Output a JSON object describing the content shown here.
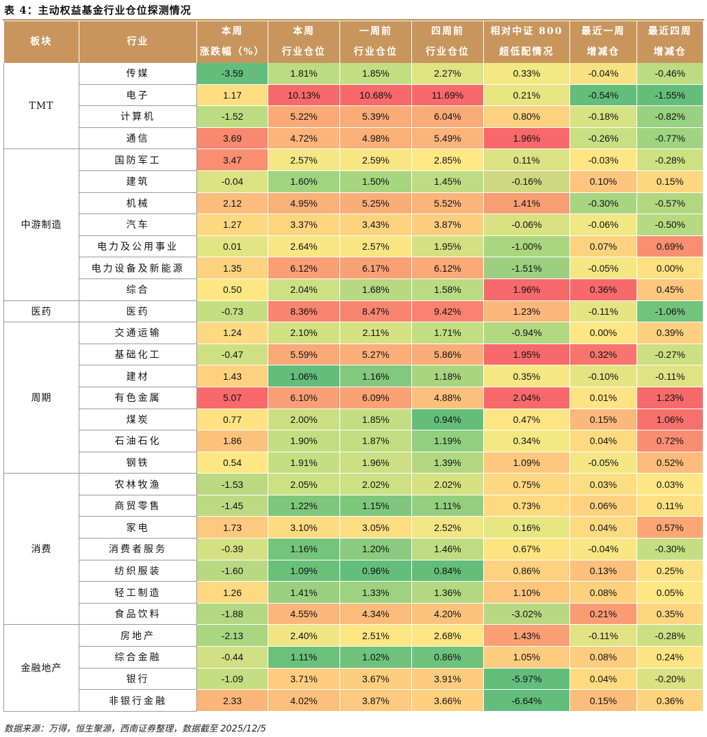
{
  "title": "表 4：主动权益基金行业仓位探测情况",
  "headers": {
    "sector": "板块",
    "industry": "行业",
    "c1": [
      "本周",
      "涨跌幅（%）"
    ],
    "c2": [
      "本周",
      "行业仓位"
    ],
    "c3": [
      "一周前",
      "行业仓位"
    ],
    "c4": [
      "四周前",
      "行业仓位"
    ],
    "c5": [
      "相对中证 800",
      "超低配情况"
    ],
    "c6": [
      "最近一周",
      "增减仓"
    ],
    "c7": [
      "最近四周",
      "增减仓"
    ]
  },
  "sectors": [
    {
      "name": "TMT",
      "rows": [
        {
          "industry": "传媒",
          "values": [
            "-3.59",
            "1.81%",
            "1.85%",
            "2.27%",
            "0.33%",
            "-0.04%",
            "-0.46%"
          ],
          "colors": [
            "#63be7b",
            "#bcdc82",
            "#c3de82",
            "#dfe483",
            "#f3e883",
            "#f7e183",
            "#bcdc82"
          ]
        },
        {
          "industry": "电子",
          "values": [
            "1.17",
            "10.13%",
            "10.68%",
            "11.69%",
            "0.21%",
            "-0.54%",
            "-1.55%"
          ],
          "colors": [
            "#fedd81",
            "#f8696b",
            "#f8696b",
            "#f8696b",
            "#e7e683",
            "#63be7b",
            "#63be7b"
          ]
        },
        {
          "industry": "计算机",
          "values": [
            "-1.52",
            "5.22%",
            "5.39%",
            "6.04%",
            "0.80%",
            "-0.18%",
            "-0.82%"
          ],
          "colors": [
            "#bcdc82",
            "#fbaa77",
            "#fbab77",
            "#fbab77",
            "#fdd17f",
            "#d7e282",
            "#98d180"
          ]
        },
        {
          "industry": "通信",
          "values": [
            "3.69",
            "4.72%",
            "4.98%",
            "5.49%",
            "1.96%",
            "-0.26%",
            "-0.77%"
          ],
          "colors": [
            "#f98870",
            "#fcb479",
            "#fbb078",
            "#fbb479",
            "#f8696b",
            "#c8df82",
            "#a0d380"
          ]
        }
      ]
    },
    {
      "name": "中游制造",
      "rows": [
        {
          "industry": "国防军工",
          "values": [
            "3.47",
            "2.57%",
            "2.59%",
            "2.85%",
            "0.11%",
            "-0.03%",
            "-0.28%"
          ],
          "colors": [
            "#f98e71",
            "#f4e784",
            "#f8e683",
            "#fee883",
            "#dce383",
            "#fee683",
            "#cde082"
          ]
        },
        {
          "industry": "建筑",
          "values": [
            "-0.04",
            "1.60%",
            "1.50%",
            "1.45%",
            "-0.16%",
            "0.10%",
            "0.15%"
          ],
          "colors": [
            "#dbe382",
            "#a2d480",
            "#a8d580",
            "#bedc81",
            "#ced981",
            "#fdc57d",
            "#fed67f"
          ]
        },
        {
          "industry": "机械",
          "values": [
            "2.12",
            "4.95%",
            "5.25%",
            "5.52%",
            "1.41%",
            "-0.30%",
            "-0.57%"
          ],
          "colors": [
            "#fcbc7b",
            "#fbb078",
            "#fbad78",
            "#fbb479",
            "#f99d74",
            "#a8d580",
            "#b1d881"
          ]
        },
        {
          "industry": "汽车",
          "values": [
            "1.27",
            "3.37%",
            "3.43%",
            "3.87%",
            "-0.06%",
            "-0.06%",
            "-0.50%"
          ],
          "colors": [
            "#fed881",
            "#fed47f",
            "#fdd27f",
            "#fdcd7e",
            "#d8e282",
            "#f1e783",
            "#b6da81"
          ]
        },
        {
          "industry": "电力及公用事业",
          "values": [
            "0.01",
            "2.64%",
            "2.57%",
            "1.95%",
            "-1.00%",
            "0.07%",
            "0.69%"
          ],
          "colors": [
            "#e2e583",
            "#f8e683",
            "#f9e683",
            "#d3e182",
            "#abd680",
            "#fdd27f",
            "#f98e71"
          ]
        },
        {
          "industry": "电力设备及新能源",
          "values": [
            "1.35",
            "6.12%",
            "6.17%",
            "6.12%",
            "-1.51%",
            "-0.05%",
            "0.00%"
          ],
          "colors": [
            "#fdd27f",
            "#fa9e74",
            "#faa075",
            "#fba975",
            "#9ecf7f",
            "#f4e683",
            "#fee081"
          ]
        },
        {
          "industry": "综合",
          "values": [
            "0.50",
            "2.04%",
            "1.68%",
            "1.58%",
            "1.96%",
            "0.36%",
            "0.45%"
          ],
          "colors": [
            "#fee783",
            "#cde082",
            "#b6d981",
            "#b9db81",
            "#f8696b",
            "#f8696b",
            "#fdc87d"
          ]
        }
      ]
    },
    {
      "name": "医药",
      "rows": [
        {
          "industry": "医药",
          "values": [
            "-0.73",
            "8.36%",
            "8.47%",
            "9.42%",
            "1.23%",
            "-0.11%",
            "-1.06%"
          ],
          "colors": [
            "#c6de82",
            "#f98470",
            "#f98570",
            "#f98370",
            "#fcb77a",
            "#e5e483",
            "#72c37c"
          ]
        }
      ]
    },
    {
      "name": "周期",
      "rows": [
        {
          "industry": "交通运输",
          "values": [
            "1.24",
            "2.10%",
            "2.11%",
            "1.71%",
            "-0.94%",
            "0.00%",
            "0.39%"
          ],
          "colors": [
            "#fed981",
            "#d1e182",
            "#d5e282",
            "#c2dd82",
            "#b2d881",
            "#fde683",
            "#fecf7e"
          ]
        },
        {
          "industry": "基础化工",
          "values": [
            "-0.47",
            "5.59%",
            "5.27%",
            "5.86%",
            "1.95%",
            "0.32%",
            "-0.27%"
          ],
          "colors": [
            "#cfe082",
            "#fba877",
            "#fbae78",
            "#fbac77",
            "#f8696b",
            "#f8746d",
            "#ccdf82"
          ]
        },
        {
          "industry": "建材",
          "values": [
            "1.43",
            "1.06%",
            "1.16%",
            "1.18%",
            "0.35%",
            "-0.10%",
            "-0.11%"
          ],
          "colors": [
            "#fdd17f",
            "#63be7b",
            "#82c97f",
            "#a9d57f",
            "#f5e883",
            "#e4e483",
            "#e0e383"
          ]
        },
        {
          "industry": "有色金属",
          "values": [
            "5.07",
            "6.10%",
            "6.09%",
            "4.88%",
            "2.04%",
            "0.01%",
            "1.23%"
          ],
          "colors": [
            "#f8696b",
            "#fa9f75",
            "#faa175",
            "#fcc07c",
            "#f8696b",
            "#fde383",
            "#f8696b"
          ]
        },
        {
          "industry": "煤炭",
          "values": [
            "0.77",
            "2.00%",
            "1.85%",
            "0.94%",
            "0.47%",
            "0.15%",
            "1.06%"
          ],
          "colors": [
            "#fee282",
            "#cbdf82",
            "#c3de82",
            "#63be7b",
            "#fde583",
            "#fbb87a",
            "#f8706c"
          ]
        },
        {
          "industry": "石油石化",
          "values": [
            "1.86",
            "1.90%",
            "1.87%",
            "1.19%",
            "0.34%",
            "0.04%",
            "0.72%"
          ],
          "colors": [
            "#fcc27c",
            "#c3dd82",
            "#c3dd82",
            "#92cf7f",
            "#f4e883",
            "#fdda80",
            "#f98d71"
          ]
        },
        {
          "industry": "钢铁",
          "values": [
            "0.54",
            "1.91%",
            "1.96%",
            "1.39%",
            "1.09%",
            "-0.05%",
            "0.52%"
          ],
          "colors": [
            "#fee683",
            "#c6de82",
            "#ccdf82",
            "#b1d881",
            "#fdc87d",
            "#f4e683",
            "#fcbb7b"
          ]
        }
      ]
    },
    {
      "name": "消费",
      "rows": [
        {
          "industry": "农林牧渔",
          "values": [
            "-1.53",
            "2.05%",
            "2.02%",
            "2.02%",
            "0.75%",
            "0.03%",
            "0.03%"
          ],
          "colors": [
            "#bad981",
            "#cde082",
            "#cde082",
            "#d6e182",
            "#fdd880",
            "#fddd81",
            "#fde683"
          ]
        },
        {
          "industry": "商贸零售",
          "values": [
            "-1.45",
            "1.22%",
            "1.15%",
            "1.11%",
            "0.73%",
            "0.06%",
            "0.11%"
          ],
          "colors": [
            "#bcda82",
            "#7ec77d",
            "#7ec77d",
            "#93cf7f",
            "#fdd980",
            "#fdd27f",
            "#fde081"
          ]
        },
        {
          "industry": "家电",
          "values": [
            "1.73",
            "3.10%",
            "3.05%",
            "2.52%",
            "0.16%",
            "0.04%",
            "0.57%"
          ],
          "colors": [
            "#fdc97e",
            "#fedb80",
            "#fedc81",
            "#f1e683",
            "#e7e683",
            "#fdda80",
            "#fba775"
          ]
        },
        {
          "industry": "消费者服务",
          "values": [
            "-0.39",
            "1.16%",
            "1.20%",
            "1.46%",
            "0.67%",
            "-0.04%",
            "-0.30%"
          ],
          "colors": [
            "#d3e182",
            "#74c47c",
            "#8acb7f",
            "#bedc81",
            "#fee381",
            "#f8e583",
            "#c6de82"
          ]
        },
        {
          "industry": "纺织服装",
          "values": [
            "-1.60",
            "1.09%",
            "0.96%",
            "0.84%",
            "0.86%",
            "0.13%",
            "0.25%"
          ],
          "colors": [
            "#b9d981",
            "#6ac07b",
            "#63be7b",
            "#63be7b",
            "#fdd17f",
            "#fcc07c",
            "#fde183"
          ]
        },
        {
          "industry": "轻工制造",
          "values": [
            "1.26",
            "1.41%",
            "1.33%",
            "1.36%",
            "1.10%",
            "0.08%",
            "0.05%"
          ],
          "colors": [
            "#fed981",
            "#9ad080",
            "#9ed180",
            "#b2d881",
            "#fcc67d",
            "#fdd07e",
            "#fee683"
          ]
        },
        {
          "industry": "食品饮料",
          "values": [
            "-1.88",
            "4.55%",
            "4.34%",
            "4.20%",
            "-3.02%",
            "0.21%",
            "0.35%"
          ],
          "colors": [
            "#b2d881",
            "#fbb679",
            "#fbbb7a",
            "#fbc27c",
            "#b7d981",
            "#f99c74",
            "#fed57f"
          ]
        }
      ]
    },
    {
      "name": "金融地产",
      "rows": [
        {
          "industry": "房地产",
          "values": [
            "-2.13",
            "2.40%",
            "2.51%",
            "2.68%",
            "1.43%",
            "-0.11%",
            "-0.28%"
          ],
          "colors": [
            "#a9d680",
            "#f1e583",
            "#fde583",
            "#fee582",
            "#fa9e74",
            "#e1e383",
            "#ccdf82"
          ]
        },
        {
          "industry": "综合金融",
          "values": [
            "-0.44",
            "1.11%",
            "1.02%",
            "0.86%",
            "1.05%",
            "0.08%",
            "0.24%"
          ],
          "colors": [
            "#d0e082",
            "#6bc17c",
            "#6ec27c",
            "#6fc27c",
            "#fdcc7e",
            "#fdcd7e",
            "#fde482"
          ]
        },
        {
          "industry": "银行",
          "values": [
            "-1.09",
            "3.71%",
            "3.67%",
            "3.91%",
            "-5.97%",
            "0.04%",
            "-0.20%"
          ],
          "colors": [
            "#c5de82",
            "#fdcc7e",
            "#fdce7e",
            "#fdcb7e",
            "#63be7b",
            "#fdda80",
            "#d8e282"
          ]
        },
        {
          "industry": "非银行金融",
          "values": [
            "2.33",
            "4.02%",
            "3.87%",
            "3.66%",
            "-6.64%",
            "0.15%",
            "0.36%"
          ],
          "colors": [
            "#fbb579",
            "#fcbf7b",
            "#fdc97e",
            "#fed07e",
            "#63be7b",
            "#fcbd7b",
            "#fed27e"
          ]
        }
      ]
    }
  ],
  "source": "数据来源：万得，恒生聚源，西南证券整理，数据截至 2025/12/5"
}
